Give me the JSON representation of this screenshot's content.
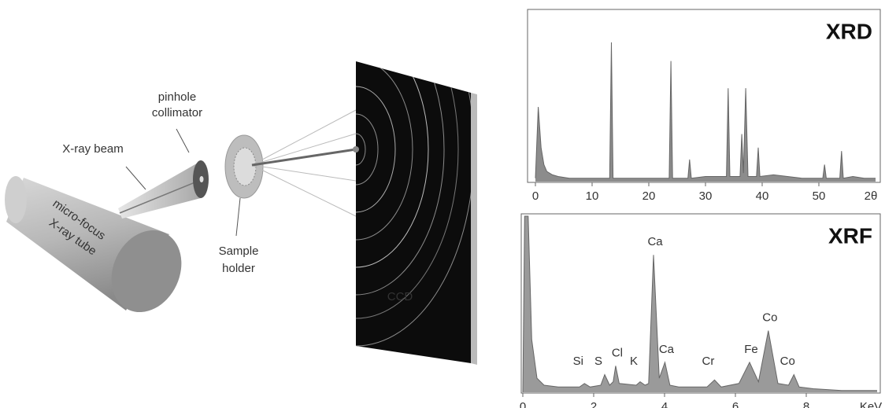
{
  "diagram": {
    "tube": [
      "micro-focus",
      "X-ray tube"
    ],
    "beam": "X-ray beam",
    "collimator": [
      "pinhole",
      "collimator"
    ],
    "holder": [
      "Sample",
      "holder"
    ],
    "detector": "CCD"
  },
  "chart_data": [
    {
      "type": "line",
      "title": "XRD",
      "xlabel": "2θ",
      "color": "#8c8c8c",
      "x": [
        0,
        0.5,
        1,
        1.5,
        2,
        3,
        4,
        6,
        8,
        10,
        13.1,
        13.4,
        13.7,
        18,
        23.6,
        23.9,
        24.2,
        26.9,
        27.2,
        27.5,
        30,
        33.7,
        34,
        34.3,
        36.1,
        36.4,
        36.7,
        37.1,
        37.5,
        39,
        39.3,
        39.6,
        42,
        47,
        50.7,
        51,
        51.3,
        53.7,
        54,
        54.3,
        56,
        58,
        60
      ],
      "values": [
        2,
        44,
        20,
        10,
        6,
        4,
        3,
        2,
        2,
        2,
        2,
        82,
        2,
        2,
        2,
        71,
        2,
        2,
        13,
        2,
        3,
        3,
        55,
        3,
        3,
        28,
        5,
        55,
        3,
        3,
        20,
        3,
        4,
        2,
        2,
        10,
        2,
        2,
        18,
        2,
        3,
        2,
        2
      ],
      "xlim": [
        0,
        60
      ],
      "xticks": [
        0,
        10,
        20,
        30,
        40,
        50
      ],
      "ylim": [
        0,
        100
      ]
    },
    {
      "type": "line",
      "title": "XRF",
      "xlabel": "KeV",
      "color": "#9a9a9a",
      "x": [
        0,
        0.05,
        0.15,
        0.25,
        0.4,
        0.6,
        1,
        1.6,
        1.74,
        1.9,
        2.2,
        2.31,
        2.45,
        2.55,
        2.62,
        2.72,
        3.2,
        3.31,
        3.45,
        3.55,
        3.69,
        3.85,
        4.01,
        4.15,
        4.4,
        5.2,
        5.41,
        5.6,
        6.1,
        6.4,
        6.65,
        6.93,
        7.2,
        7.5,
        7.65,
        7.8,
        8.2,
        9,
        10
      ],
      "values": [
        0,
        100,
        100,
        30,
        8,
        4,
        3,
        3,
        5,
        3,
        4,
        10,
        4,
        6,
        15,
        5,
        4,
        6,
        4,
        5,
        78,
        8,
        17,
        4,
        3,
        3,
        7,
        3,
        5,
        17,
        6,
        35,
        5,
        4,
        10,
        3,
        2,
        1,
        1
      ],
      "xlim": [
        0,
        10
      ],
      "xticks": [
        0,
        2,
        4,
        6,
        8
      ],
      "ylim": [
        0,
        100
      ],
      "peaks": [
        {
          "label": "Si",
          "x": 1.74
        },
        {
          "label": "S",
          "x": 2.31
        },
        {
          "label": "Cl",
          "x": 2.62
        },
        {
          "label": "K",
          "x": 3.31
        },
        {
          "label": "Ca",
          "x": 3.69
        },
        {
          "label": "Ca",
          "x": 4.01
        },
        {
          "label": "Cr",
          "x": 5.41
        },
        {
          "label": "Fe",
          "x": 6.4
        },
        {
          "label": "Co",
          "x": 6.93
        },
        {
          "label": "Co",
          "x": 7.65
        }
      ]
    }
  ]
}
